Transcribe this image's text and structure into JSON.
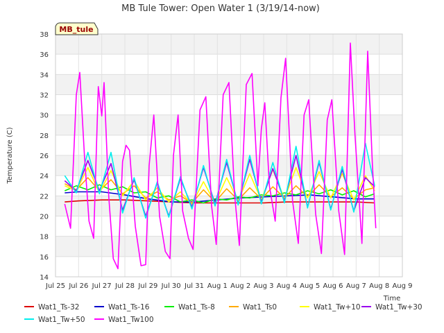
{
  "chart_data": {
    "type": "line",
    "title": "MB Tule Tower: Open Water 1 (3/19/14-now)",
    "xlabel": "Time",
    "ylabel": "Temperature (C)",
    "station_label": "MB_tule",
    "ylim": [
      14,
      38
    ],
    "xlim": [
      0,
      15
    ],
    "yticks": [
      14,
      16,
      18,
      20,
      22,
      24,
      26,
      28,
      30,
      32,
      34,
      36,
      38
    ],
    "x_tick_labels": [
      "Jul 25",
      "Jul 26",
      "Jul 27",
      "Jul 28",
      "Jul 29",
      "Jul 30",
      "Jul 31",
      "Aug 1",
      "Aug 2",
      "Aug 3",
      "Aug 4",
      "Aug 5",
      "Aug 6",
      "Aug 7",
      "Aug 8",
      "Aug 9"
    ],
    "x_units": "days since Jul 25",
    "legend_position": "bottom",
    "series": [
      {
        "name": "Wat1_Ts-32",
        "color": "#dd0000",
        "x": [
          0.4,
          1,
          2,
          3,
          4,
          5,
          6,
          7,
          8,
          9,
          10,
          11,
          12,
          13,
          13.8
        ],
        "y": [
          21.4,
          21.5,
          21.6,
          21.6,
          21.5,
          21.4,
          21.3,
          21.3,
          21.3,
          21.3,
          21.4,
          21.4,
          21.4,
          21.4,
          21.3
        ]
      },
      {
        "name": "Wat1_Ts-16",
        "color": "#0000cc",
        "x": [
          0.4,
          1,
          2,
          3,
          4,
          5,
          6,
          7,
          8,
          9,
          10,
          11,
          12,
          13,
          13.8
        ],
        "y": [
          22.3,
          22.4,
          22.4,
          22.1,
          21.7,
          21.4,
          21.4,
          21.6,
          21.8,
          21.9,
          22,
          22.1,
          21.9,
          21.7,
          21.7
        ]
      },
      {
        "name": "Wat1_Ts-8",
        "color": "#00ee00",
        "x": [
          0.4,
          0.9,
          1.4,
          1.9,
          2.4,
          2.9,
          3.4,
          3.9,
          4.4,
          4.9,
          5.4,
          5.9,
          6.4,
          6.9,
          7.4,
          7.9,
          8.4,
          8.9,
          9.4,
          9.9,
          10.4,
          10.9,
          11.4,
          11.9,
          12.4,
          12.9,
          13.4,
          13.8
        ],
        "y": [
          22.5,
          23,
          22.6,
          23.1,
          22.6,
          22.9,
          22.3,
          22.4,
          21.8,
          22,
          21.4,
          21.6,
          21.3,
          21.7,
          21.6,
          21.9,
          21.8,
          22.1,
          22,
          22.3,
          22.1,
          22.5,
          22.2,
          22.6,
          22.1,
          22.5,
          21.9,
          22.2
        ]
      },
      {
        "name": "Wat1_Ts0",
        "color": "#ffaa00",
        "x": [
          0.4,
          0.9,
          1.4,
          1.9,
          2.4,
          2.9,
          3.4,
          3.9,
          4.4,
          4.9,
          5.4,
          5.9,
          6.4,
          6.9,
          7.4,
          7.9,
          8.4,
          8.9,
          9.4,
          9.9,
          10.4,
          10.9,
          11.4,
          11.9,
          12.4,
          12.9,
          13.4,
          13.8
        ],
        "y": [
          23.2,
          22.6,
          23.8,
          22.5,
          23.6,
          22.2,
          23,
          21.8,
          22.4,
          21.6,
          22,
          21.3,
          22.6,
          21.4,
          22.7,
          21.6,
          22.8,
          21.7,
          22.9,
          21.8,
          23,
          21.9,
          23.1,
          21.9,
          22.8,
          21.7,
          22.6,
          22.8
        ]
      },
      {
        "name": "Wat1_Tw+10",
        "color": "#ffff00",
        "x": [
          0.4,
          0.9,
          1.4,
          1.9,
          2.4,
          2.9,
          3.4,
          3.9,
          4.4,
          4.9,
          5.4,
          5.9,
          6.4,
          6.9,
          7.4,
          7.9,
          8.4,
          8.9,
          9.4,
          9.9,
          10.4,
          10.9,
          11.4,
          11.9,
          12.4,
          12.9,
          13.4,
          13.8
        ],
        "y": [
          23,
          22.5,
          24.8,
          22.3,
          24.5,
          22,
          23.5,
          21.6,
          22.8,
          21.4,
          22.4,
          21.2,
          23.4,
          21.3,
          23.8,
          21.5,
          24.2,
          21.6,
          24.6,
          21.7,
          24.8,
          21.8,
          24.4,
          21.8,
          24.2,
          21.6,
          24,
          22.5
        ]
      },
      {
        "name": "Wat1_Tw+30",
        "color": "#9900ee",
        "x": [
          0.4,
          0.9,
          1.4,
          1.9,
          2.4,
          2.9,
          3.4,
          3.9,
          4.4,
          4.9,
          5.4,
          5.9,
          6.4,
          6.9,
          7.4,
          7.9,
          8.4,
          8.9,
          9.4,
          9.9,
          10.4,
          10.9,
          11.4,
          11.9,
          12.4,
          12.9,
          13.4,
          13.8
        ],
        "y": [
          23.5,
          22.5,
          25.5,
          22.5,
          25.2,
          20.6,
          23.6,
          20,
          23.3,
          20,
          23.7,
          20.9,
          24.8,
          21.2,
          25.3,
          21.2,
          25.6,
          21.4,
          24.7,
          21.5,
          26,
          20.9,
          25.3,
          20.7,
          24.6,
          20.5,
          23.8,
          22.9
        ]
      },
      {
        "name": "Wat1_Tw+50",
        "color": "#00eeee",
        "x": [
          0.4,
          0.9,
          1.4,
          1.9,
          2.4,
          2.9,
          3.4,
          3.9,
          4.4,
          4.9,
          5.4,
          5.9,
          6.4,
          6.9,
          7.4,
          7.9,
          8.4,
          8.9,
          9.4,
          9.9,
          10.4,
          10.9,
          11.4,
          11.9,
          12.4,
          12.9,
          13.4,
          13.8
        ],
        "y": [
          24,
          22.3,
          26.3,
          22.2,
          26.3,
          20.3,
          23.8,
          19.8,
          23.4,
          19.9,
          23.9,
          20.7,
          25,
          21,
          25.6,
          21.1,
          26,
          21.2,
          25.3,
          21.3,
          26.9,
          20.8,
          25.5,
          20.6,
          24.9,
          20.4,
          27.2,
          23
        ]
      },
      {
        "name": "Wat1_Tw100",
        "color": "#ff00ff",
        "x": [
          0.4,
          0.65,
          0.9,
          1.05,
          1.25,
          1.45,
          1.65,
          1.85,
          2,
          2.1,
          2.3,
          2.5,
          2.7,
          2.9,
          3.05,
          3.2,
          3.45,
          3.7,
          3.9,
          4.05,
          4.25,
          4.5,
          4.75,
          4.95,
          5.1,
          5.3,
          5.5,
          5.75,
          5.95,
          6.25,
          6.5,
          6.75,
          6.95,
          7.25,
          7.5,
          7.75,
          7.95,
          8.25,
          8.5,
          8.75,
          8.9,
          9.05,
          9.25,
          9.5,
          9.75,
          9.95,
          10.25,
          10.5,
          10.75,
          10.95,
          11.25,
          11.5,
          11.75,
          11.95,
          12.25,
          12.5,
          12.75,
          12.95,
          13.25,
          13.5,
          13.7,
          13.85
        ],
        "y": [
          21.2,
          18.8,
          32,
          34.2,
          26,
          19.5,
          17.8,
          32.8,
          29.9,
          33.2,
          22,
          15.8,
          14.8,
          25.4,
          27,
          26.5,
          19,
          15.1,
          15.2,
          25,
          30,
          20,
          16.5,
          15.8,
          26,
          30,
          20.5,
          17.8,
          16.7,
          30.5,
          31.8,
          21,
          17.2,
          32,
          33.2,
          22,
          17.1,
          33,
          34.1,
          23,
          28.6,
          31.2,
          23,
          19.5,
          31.7,
          35.6,
          21.5,
          17.3,
          30,
          31.5,
          20.2,
          16.3,
          29.5,
          31.5,
          20.5,
          16.2,
          37.1,
          28,
          17.3,
          36.3,
          25.2,
          18.8
        ]
      }
    ]
  }
}
